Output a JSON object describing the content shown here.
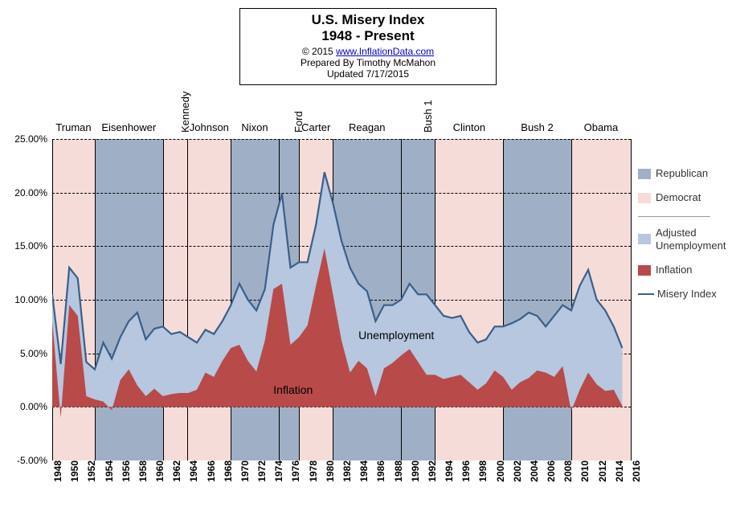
{
  "title": {
    "line1": "U.S. Misery Index",
    "line2": "1948 - Present",
    "copyright_prefix": "© 2015   ",
    "copyright_link": "www.InflationData.com",
    "prepared": "Prepared  By Timothy McMahon",
    "updated": "Updated  7/17/2015"
  },
  "chart": {
    "type": "area+line",
    "x_start_year": 1948,
    "x_end_year": 2016,
    "ylim": [
      -5,
      25
    ],
    "ytick_step": 5,
    "yticks": [
      "-5.00%",
      "0.00%",
      "5.00%",
      "10.00%",
      "15.00%",
      "20.00%",
      "25.00%"
    ],
    "xticks": [
      "1948",
      "1950",
      "1952",
      "1954",
      "1956",
      "1958",
      "1960",
      "1962",
      "1964",
      "1966",
      "1968",
      "1970",
      "1972",
      "1974",
      "1976",
      "1978",
      "1980",
      "1982",
      "1984",
      "1986",
      "1988",
      "1990",
      "1992",
      "1994",
      "1996",
      "1998",
      "2000",
      "2002",
      "2004",
      "2006",
      "2008",
      "2010",
      "2012",
      "2014",
      "2016"
    ],
    "background_color": "#ffffff",
    "grid_color": "#000000",
    "colors": {
      "republican": "#9fb0c6",
      "democrat": "#f6dcd9",
      "adjusted_unemployment": "#b6c7df",
      "inflation": "#b84a4a",
      "misery_line": "#3a5f8a"
    },
    "presidential_bands": [
      {
        "name": "Truman",
        "start": 1948,
        "end": 1953,
        "party": "D",
        "layout": "h"
      },
      {
        "name": "Eisenhower",
        "start": 1953,
        "end": 1961,
        "party": "R",
        "layout": "h"
      },
      {
        "name": "Kennedy",
        "start": 1961,
        "end": 1963.9,
        "party": "D",
        "layout": "v"
      },
      {
        "name": "Johnson",
        "start": 1963.9,
        "end": 1969,
        "party": "D",
        "layout": "h"
      },
      {
        "name": "Nixon",
        "start": 1969,
        "end": 1974.6,
        "party": "R",
        "layout": "h"
      },
      {
        "name": "Ford",
        "start": 1974.6,
        "end": 1977,
        "party": "R",
        "layout": "v"
      },
      {
        "name": "Carter",
        "start": 1977,
        "end": 1981,
        "party": "D",
        "layout": "h"
      },
      {
        "name": "Reagan",
        "start": 1981,
        "end": 1989,
        "party": "R",
        "layout": "h"
      },
      {
        "name": "Bush 1",
        "start": 1989,
        "end": 1993,
        "party": "R",
        "layout": "v"
      },
      {
        "name": "Clinton",
        "start": 1993,
        "end": 2001,
        "party": "D",
        "layout": "h"
      },
      {
        "name": "Bush 2",
        "start": 2001,
        "end": 2009,
        "party": "R",
        "layout": "h"
      },
      {
        "name": "Obama",
        "start": 2009,
        "end": 2016,
        "party": "D",
        "layout": "h"
      }
    ],
    "legend": {
      "republican": "Republican",
      "democrat": "Democrat",
      "adjusted_unemployment": "Adjusted Unemployment",
      "inflation": "Inflation",
      "misery_index": "Misery Index"
    },
    "annotations": {
      "unemployment": "Unemployment",
      "inflation": "Inflation"
    },
    "series": {
      "misery_index_yearly": {
        "1948": 10.5,
        "1949": 4.0,
        "1950": 13.0,
        "1951": 12.0,
        "1952": 4.2,
        "1953": 3.5,
        "1954": 6.0,
        "1955": 4.5,
        "1956": 6.5,
        "1957": 8.0,
        "1958": 8.8,
        "1959": 6.3,
        "1960": 7.3,
        "1961": 7.5,
        "1962": 6.8,
        "1963": 7.0,
        "1964": 6.5,
        "1965": 6.0,
        "1966": 7.2,
        "1967": 6.8,
        "1968": 8.0,
        "1969": 9.5,
        "1970": 11.5,
        "1971": 10.0,
        "1972": 9.0,
        "1973": 11.0,
        "1974": 17.0,
        "1975": 19.9,
        "1976": 13.0,
        "1977": 13.5,
        "1978": 13.5,
        "1979": 17.0,
        "1980": 21.9,
        "1981": 19.0,
        "1982": 15.5,
        "1983": 13.0,
        "1984": 11.5,
        "1985": 10.8,
        "1986": 8.0,
        "1987": 9.5,
        "1988": 9.5,
        "1989": 10.0,
        "1990": 11.5,
        "1991": 10.5,
        "1992": 10.5,
        "1993": 9.5,
        "1994": 8.5,
        "1995": 8.3,
        "1996": 8.5,
        "1997": 7.0,
        "1998": 6.0,
        "1999": 6.3,
        "2000": 7.5,
        "2001": 7.5,
        "2002": 7.8,
        "2003": 8.2,
        "2004": 8.8,
        "2005": 8.5,
        "2006": 7.5,
        "2007": 8.5,
        "2008": 9.5,
        "2009": 9.0,
        "2010": 11.3,
        "2011": 12.8,
        "2012": 10.0,
        "2013": 9.0,
        "2014": 7.5,
        "2015": 5.5
      },
      "inflation_yearly": {
        "1948": 8.0,
        "1949": -1.0,
        "1950": 9.5,
        "1951": 8.5,
        "1952": 1.0,
        "1953": 0.7,
        "1954": 0.5,
        "1955": -0.3,
        "1956": 2.5,
        "1957": 3.5,
        "1958": 2.0,
        "1959": 1.0,
        "1960": 1.7,
        "1961": 1.0,
        "1962": 1.2,
        "1963": 1.3,
        "1964": 1.3,
        "1965": 1.6,
        "1966": 3.2,
        "1967": 2.8,
        "1968": 4.3,
        "1969": 5.5,
        "1970": 5.8,
        "1971": 4.3,
        "1972": 3.3,
        "1973": 6.2,
        "1974": 11.0,
        "1975": 11.5,
        "1976": 5.8,
        "1977": 6.5,
        "1978": 7.6,
        "1979": 11.3,
        "1980": 14.8,
        "1981": 10.5,
        "1982": 6.2,
        "1983": 3.2,
        "1984": 4.3,
        "1985": 3.6,
        "1986": 1.0,
        "1987": 3.6,
        "1988": 4.1,
        "1989": 4.8,
        "1990": 5.4,
        "1991": 4.2,
        "1992": 3.0,
        "1993": 3.0,
        "1994": 2.6,
        "1995": 2.8,
        "1996": 3.0,
        "1997": 2.3,
        "1998": 1.6,
        "1999": 2.2,
        "2000": 3.4,
        "2001": 2.8,
        "2002": 1.6,
        "2003": 2.3,
        "2004": 2.7,
        "2005": 3.4,
        "2006": 3.2,
        "2007": 2.8,
        "2008": 3.8,
        "2009": -0.4,
        "2010": 1.6,
        "2011": 3.2,
        "2012": 2.1,
        "2013": 1.5,
        "2014": 1.6,
        "2015": 0.1
      }
    },
    "line_width_misery": 2.2,
    "title_fontsize": 17,
    "axis_fontsize": 12
  }
}
